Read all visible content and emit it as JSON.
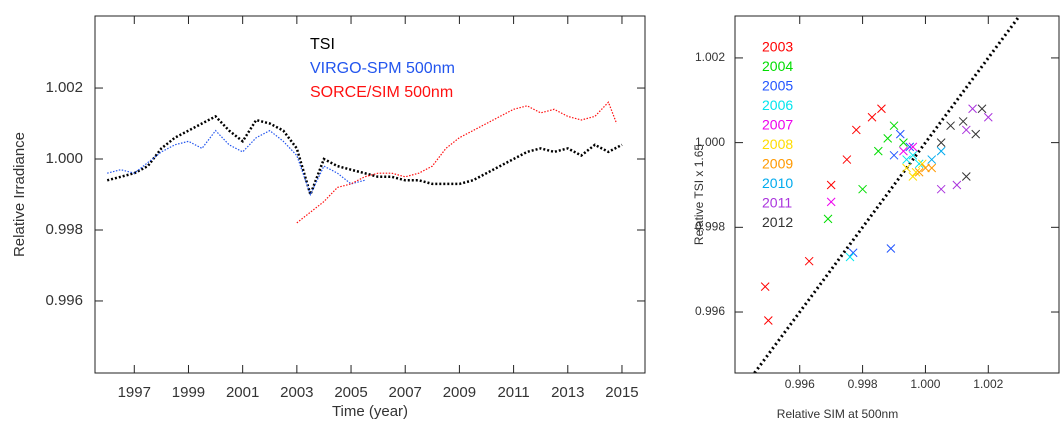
{
  "chart_data": [
    {
      "type": "line",
      "xlabel": "Time (year)",
      "ylabel": "Relative Irradiance",
      "xlim": [
        1995.55,
        2015.85
      ],
      "ylim": [
        0.99397,
        1.00403
      ],
      "xticks": [
        1997,
        1999,
        2001,
        2003,
        2005,
        2007,
        2009,
        2011,
        2013,
        2015
      ],
      "yticks": [
        0.996,
        0.998,
        {
          "value": 1,
          "label": "1.000"
        },
        1.002
      ],
      "legend": "upper-center",
      "series": [
        {
          "name": "TSI",
          "color": "#000000",
          "x": [
            1996,
            1996.5,
            1997,
            1997.5,
            1998,
            1998.5,
            1999,
            1999.5,
            2000,
            2000.5,
            2001,
            2001.5,
            2002,
            2002.5,
            2003,
            2003.5,
            2004,
            2004.5,
            2005,
            2005.5,
            2006,
            2006.5,
            2007,
            2007.5,
            2008,
            2008.5,
            2009,
            2009.5,
            2010,
            2010.5,
            2011,
            2011.5,
            2012,
            2012.5,
            2013,
            2013.5,
            2014,
            2014.5,
            2015
          ],
          "values": [
            0.9994,
            0.9995,
            0.9996,
            0.9998,
            1.0003,
            1.0006,
            1.0008,
            1.001,
            1.0012,
            1.0008,
            1.0005,
            1.0011,
            1.001,
            1.0008,
            1.0003,
            0.999,
            1.0,
            0.9998,
            0.9997,
            0.9996,
            0.9995,
            0.9995,
            0.9994,
            0.9994,
            0.9993,
            0.9993,
            0.9993,
            0.9994,
            0.9996,
            0.9998,
            1.0,
            1.0002,
            1.0003,
            1.0002,
            1.0003,
            1.0001,
            1.0004,
            1.0002,
            1.0004
          ]
        },
        {
          "name": "VIRGO-SPM 500nm",
          "color": "#2255ee",
          "x": [
            1996,
            1996.5,
            1997,
            1997.5,
            1998,
            1998.5,
            1999,
            1999.5,
            2000,
            2000.5,
            2001,
            2001.5,
            2002,
            2002.5,
            2003,
            2003.5,
            2004,
            2004.5,
            2005,
            2005.5
          ],
          "values": [
            0.9996,
            0.9997,
            0.9996,
            0.9999,
            1.0002,
            1.0004,
            1.0005,
            1.0003,
            1.0008,
            1.0004,
            1.0002,
            1.0006,
            1.0008,
            1.0005,
            1.0001,
            0.999,
            0.9998,
            0.9996,
            0.9993,
            0.9994
          ]
        },
        {
          "name": "SORCE/SIM 500nm",
          "color": "#ff1010",
          "x": [
            2003,
            2003.5,
            2004,
            2004.5,
            2005,
            2005.5,
            2006,
            2006.5,
            2007,
            2007.5,
            2008,
            2008.5,
            2009,
            2009.5,
            2010,
            2010.5,
            2011,
            2011.5,
            2012,
            2012.5,
            2013,
            2013.5,
            2014,
            2014.5,
            2014.8
          ],
          "values": [
            0.9982,
            0.9985,
            0.9988,
            0.9992,
            0.9993,
            0.9995,
            0.9996,
            0.9996,
            0.9995,
            0.9996,
            0.9998,
            1.0003,
            1.0006,
            1.0008,
            1.001,
            1.0012,
            1.0014,
            1.0015,
            1.0013,
            1.0014,
            1.0012,
            1.0011,
            1.0012,
            1.0016,
            1.001
          ]
        }
      ]
    },
    {
      "type": "scatter",
      "xlabel": "Relative SIM at 500nm",
      "ylabel": "Relative TSI x 1.65",
      "xlim": [
        0.99394,
        1.00425
      ],
      "ylim": [
        0.99456,
        1.00299
      ],
      "xticks": [
        0.996,
        0.998,
        {
          "value": 1,
          "label": "1.000"
        },
        1.002
      ],
      "yticks": [
        0.996,
        0.998,
        {
          "value": 1,
          "label": "1.000"
        },
        1.002
      ],
      "legend": "upper-left",
      "diagonal": true,
      "series": [
        {
          "name": "2003",
          "color": "#ff0000",
          "x": [
            0.9949,
            0.995,
            0.9963,
            0.997,
            0.9978,
            0.9983,
            0.9986,
            0.9975
          ],
          "values": [
            0.9966,
            0.9958,
            0.9972,
            0.999,
            1.0003,
            1.0006,
            1.0008,
            0.9996
          ]
        },
        {
          "name": "2004",
          "color": "#00dd00",
          "x": [
            0.9969,
            0.998,
            0.9985,
            0.999,
            0.9988,
            0.9993
          ],
          "values": [
            0.9982,
            0.9989,
            0.9998,
            1.0004,
            1.0001,
            1.0
          ]
        },
        {
          "name": "2005",
          "color": "#2255ff",
          "x": [
            0.9977,
            0.9989,
            0.999,
            0.9995,
            0.9992
          ],
          "values": [
            0.9974,
            0.9975,
            0.9997,
            0.9999,
            1.0002
          ]
        },
        {
          "name": "2006",
          "color": "#00e5ee",
          "x": [
            0.9976,
            0.9996,
            0.9998,
            0.9994
          ],
          "values": [
            0.9973,
            0.9997,
            0.9995,
            0.9996
          ]
        },
        {
          "name": "2007",
          "color": "#ee00ee",
          "x": [
            0.997,
            0.9996,
            0.9993
          ],
          "values": [
            0.9986,
            0.9999,
            0.9998
          ]
        },
        {
          "name": "2008",
          "color": "#ffdd00",
          "x": [
            0.9994,
            0.9997,
            0.9999,
            0.9996
          ],
          "values": [
            0.9994,
            0.9993,
            0.9995,
            0.9992
          ]
        },
        {
          "name": "2009",
          "color": "#ff9900",
          "x": [
            0.9998,
            1.0,
            1.0002
          ],
          "values": [
            0.9993,
            0.9994,
            0.9994
          ]
        },
        {
          "name": "2010",
          "color": "#00aaee",
          "x": [
            1.0002,
            1.0005
          ],
          "values": [
            0.9996,
            0.9998
          ]
        },
        {
          "name": "2011",
          "color": "#aa33dd",
          "x": [
            1.0005,
            1.001,
            1.0015,
            1.002,
            1.0013
          ],
          "values": [
            0.9989,
            0.999,
            1.0008,
            1.0006,
            1.0003
          ]
        },
        {
          "name": "2012",
          "color": "#333333",
          "x": [
            1.0008,
            1.0012,
            1.0016,
            1.0018,
            1.0005,
            1.0013
          ],
          "values": [
            1.0004,
            1.0005,
            1.0002,
            1.0008,
            1.0,
            0.9992
          ]
        }
      ]
    }
  ]
}
